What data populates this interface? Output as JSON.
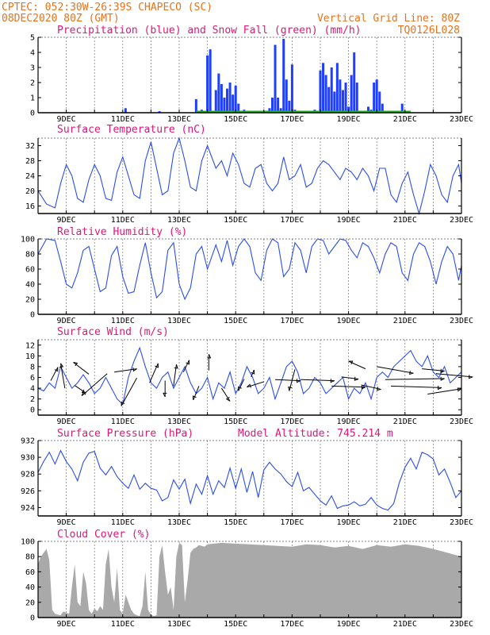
{
  "header": {
    "line1": "CPTEC:   052:30W-26:39S   CHAPECO (SC)",
    "line2": "08DEC2020 80Z (GMT)",
    "grid_note": "Vertical Grid Line: 80Z",
    "code": "TQ0126L028"
  },
  "date_ticks": [
    "9DEC",
    "11DEC",
    "13DEC",
    "15DEC",
    "17DEC",
    "19DEC",
    "21DEC",
    "23DEC"
  ],
  "chart_data": [
    {
      "id": "precip",
      "type": "bar",
      "title": "Precipitation (blue) and Snow Fall (green) (mm/h)",
      "ylim": [
        0,
        5
      ],
      "yticks": [
        0,
        1,
        2,
        3,
        4,
        5
      ],
      "xlim_days": [
        8.0,
        23.0
      ],
      "series": [
        {
          "color": "#1f3fff",
          "x": [
            11.1,
            12.3,
            13.6,
            13.8,
            14.0,
            14.1,
            14.3,
            14.4,
            14.5,
            14.6,
            14.7,
            14.8,
            14.9,
            15.0,
            15.1,
            15.3,
            15.5,
            16.0,
            16.2,
            16.3,
            16.4,
            16.5,
            16.6,
            16.7,
            16.8,
            16.9,
            17.0,
            17.1,
            17.5,
            17.8,
            18.0,
            18.1,
            18.2,
            18.3,
            18.4,
            18.5,
            18.6,
            18.7,
            18.8,
            18.9,
            19.0,
            19.1,
            19.2,
            19.3,
            19.7,
            19.8,
            19.9,
            20.0,
            20.1,
            20.2,
            20.9
          ],
          "values": [
            0.3,
            0.1,
            0.9,
            0.2,
            3.8,
            4.2,
            1.5,
            2.6,
            1.9,
            1.0,
            1.6,
            2.0,
            1.2,
            1.8,
            0.6,
            0.2,
            0.1,
            0.1,
            0.3,
            1.0,
            4.5,
            1.0,
            0.3,
            4.9,
            2.2,
            0.8,
            3.2,
            0.2,
            0.1,
            0.2,
            2.8,
            3.3,
            2.5,
            1.7,
            3.0,
            1.4,
            3.3,
            2.2,
            1.5,
            2.0,
            0.4,
            2.5,
            4.0,
            2.0,
            0.4,
            0.2,
            2.0,
            2.2,
            1.4,
            0.6,
            0.6
          ]
        }
      ]
    },
    {
      "id": "temp",
      "type": "line",
      "title": "Surface Temperature (nC)",
      "ylim": [
        14,
        34
      ],
      "yticks": [
        16,
        20,
        24,
        28,
        32
      ],
      "color": "#2b4ee8",
      "x": [
        8.0,
        8.3,
        8.6,
        8.8,
        9.0,
        9.2,
        9.4,
        9.6,
        9.8,
        10.0,
        10.2,
        10.4,
        10.6,
        10.8,
        11.0,
        11.2,
        11.4,
        11.6,
        11.8,
        12.0,
        12.2,
        12.4,
        12.6,
        12.8,
        13.0,
        13.2,
        13.4,
        13.6,
        13.8,
        14.0,
        14.3,
        14.5,
        14.7,
        14.9,
        15.1,
        15.3,
        15.5,
        15.7,
        15.9,
        16.1,
        16.3,
        16.5,
        16.7,
        16.9,
        17.1,
        17.3,
        17.5,
        17.7,
        17.9,
        18.1,
        18.3,
        18.5,
        18.7,
        18.9,
        19.1,
        19.3,
        19.5,
        19.7,
        19.9,
        20.1,
        20.3,
        20.5,
        20.7,
        20.9,
        21.1,
        21.3,
        21.5,
        21.7,
        21.9,
        22.1,
        22.3,
        22.5,
        22.7,
        22.9,
        23.0
      ],
      "values": [
        20,
        16.5,
        15.5,
        22,
        27,
        24,
        18,
        17,
        23,
        27,
        24,
        18,
        17.5,
        25,
        29,
        24,
        19,
        18,
        28,
        33,
        26,
        19,
        20,
        30,
        34,
        28,
        21,
        20,
        28,
        32,
        26,
        28,
        24,
        30,
        27,
        22,
        21,
        26,
        27,
        22,
        20,
        22,
        29,
        23,
        24,
        27,
        21,
        22,
        26,
        28,
        27,
        25,
        23,
        26,
        25,
        23,
        26,
        24,
        20,
        26,
        26,
        19,
        17,
        22,
        25,
        19,
        14,
        20,
        27,
        24,
        19,
        17,
        24,
        27,
        22
      ]
    },
    {
      "id": "rh",
      "type": "line",
      "title": "Relative Humidity (%)",
      "ylim": [
        0,
        100
      ],
      "yticks": [
        0,
        20,
        40,
        60,
        80,
        100
      ],
      "color": "#2b4ee8",
      "x": [
        8.0,
        8.3,
        8.6,
        8.8,
        9.0,
        9.2,
        9.4,
        9.6,
        9.8,
        10.0,
        10.2,
        10.4,
        10.6,
        10.8,
        11.0,
        11.2,
        11.4,
        11.6,
        11.8,
        12.0,
        12.2,
        12.4,
        12.6,
        12.8,
        13.0,
        13.2,
        13.4,
        13.6,
        13.8,
        14.0,
        14.3,
        14.5,
        14.7,
        14.9,
        15.1,
        15.3,
        15.5,
        15.7,
        15.9,
        16.1,
        16.3,
        16.5,
        16.7,
        16.9,
        17.1,
        17.3,
        17.5,
        17.7,
        17.9,
        18.1,
        18.3,
        18.5,
        18.7,
        18.9,
        19.1,
        19.3,
        19.5,
        19.7,
        19.9,
        20.1,
        20.3,
        20.5,
        20.7,
        20.9,
        21.1,
        21.3,
        21.5,
        21.7,
        21.9,
        22.1,
        22.3,
        22.5,
        22.7,
        22.9,
        23.0
      ],
      "values": [
        80,
        100,
        98,
        70,
        40,
        35,
        55,
        85,
        90,
        60,
        30,
        35,
        78,
        90,
        50,
        28,
        30,
        65,
        95,
        55,
        22,
        30,
        85,
        95,
        40,
        20,
        35,
        80,
        90,
        60,
        92,
        70,
        98,
        65,
        90,
        100,
        90,
        55,
        45,
        85,
        100,
        95,
        50,
        60,
        95,
        85,
        55,
        90,
        100,
        98,
        80,
        90,
        100,
        98,
        85,
        75,
        95,
        90,
        75,
        55,
        80,
        95,
        90,
        55,
        45,
        80,
        95,
        90,
        70,
        40,
        70,
        90,
        80,
        45,
        65
      ]
    },
    {
      "id": "wind",
      "type": "line",
      "title": "Surface Wind (m/s)",
      "ylim": [
        -1,
        13
      ],
      "yticks": [
        0,
        2,
        4,
        6,
        8,
        10,
        12
      ],
      "color": "#2b4ee8",
      "x": [
        8.0,
        8.2,
        8.4,
        8.6,
        8.8,
        9.0,
        9.2,
        9.4,
        9.6,
        9.8,
        10.0,
        10.2,
        10.4,
        10.6,
        10.8,
        11.0,
        11.2,
        11.4,
        11.6,
        11.8,
        12.0,
        12.2,
        12.4,
        12.6,
        12.8,
        13.0,
        13.2,
        13.4,
        13.6,
        13.8,
        14.0,
        14.2,
        14.4,
        14.6,
        14.8,
        15.0,
        15.2,
        15.4,
        15.6,
        15.8,
        16.0,
        16.2,
        16.4,
        16.6,
        16.8,
        17.0,
        17.2,
        17.4,
        17.6,
        17.8,
        18.0,
        18.2,
        18.4,
        18.6,
        18.8,
        19.0,
        19.2,
        19.4,
        19.6,
        19.8,
        20.0,
        20.2,
        20.4,
        20.6,
        20.8,
        21.0,
        21.2,
        21.4,
        21.6,
        21.8,
        22.0,
        22.2,
        22.4,
        22.6,
        22.8,
        23.0
      ],
      "values": [
        4,
        3.5,
        5,
        4,
        8,
        6,
        4,
        5,
        6.5,
        5,
        3,
        4,
        6,
        4,
        2,
        1,
        6,
        9,
        11.5,
        8,
        5,
        4,
        6,
        7,
        4,
        6,
        8,
        5,
        3,
        4,
        6,
        2,
        5,
        4,
        7,
        3,
        5,
        8,
        6,
        3,
        4,
        6,
        2,
        5,
        8,
        9,
        7,
        3,
        4,
        6,
        5,
        3,
        4,
        5,
        6,
        2,
        4,
        3,
        5,
        2,
        6,
        7,
        6,
        8,
        9,
        10,
        11,
        9,
        8,
        10,
        7,
        6,
        8,
        5,
        6,
        7
      ],
      "barbs": [
        {
          "x": 8.45,
          "y": 5.4,
          "dx": 0.25,
          "dy": 2.5
        },
        {
          "x": 8.95,
          "y": 4.0,
          "dx": -0.15,
          "dy": 4.6
        },
        {
          "x": 9.3,
          "y": 4.5,
          "dx": 0.4,
          "dy": -1.4
        },
        {
          "x": 9.8,
          "y": 6.6,
          "dx": -0.55,
          "dy": 2.2
        },
        {
          "x": 10.45,
          "y": 6.7,
          "dx": -0.9,
          "dy": -4.1
        },
        {
          "x": 10.7,
          "y": 7.0,
          "dx": 0.8,
          "dy": 0.6
        },
        {
          "x": 11.5,
          "y": 5.9,
          "dx": -0.55,
          "dy": -5.2
        },
        {
          "x": 11.95,
          "y": 5.0,
          "dx": 0.3,
          "dy": 3.6
        },
        {
          "x": 12.5,
          "y": 5.4,
          "dx": 0.0,
          "dy": -3.0
        },
        {
          "x": 12.8,
          "y": 4.4,
          "dx": 0.1,
          "dy": 4.0
        },
        {
          "x": 13.15,
          "y": 7.0,
          "dx": 0.2,
          "dy": 2.2
        },
        {
          "x": 13.7,
          "y": 4.4,
          "dx": -0.2,
          "dy": -2.6
        },
        {
          "x": 14.05,
          "y": 7.3,
          "dx": 0.0,
          "dy": 3.0
        },
        {
          "x": 14.5,
          "y": 4.0,
          "dx": 0.3,
          "dy": -2.4
        },
        {
          "x": 15.3,
          "y": 5.7,
          "dx": -0.2,
          "dy": -2.2
        },
        {
          "x": 15.55,
          "y": 6.1,
          "dx": 0.1,
          "dy": 1.3
        },
        {
          "x": 16.0,
          "y": 5.2,
          "dx": -0.6,
          "dy": -1.0
        },
        {
          "x": 16.4,
          "y": 5.6,
          "dx": 0.9,
          "dy": -0.2
        },
        {
          "x": 17.1,
          "y": 7.5,
          "dx": -0.2,
          "dy": -4.0
        },
        {
          "x": 17.3,
          "y": 5.6,
          "dx": 1.2,
          "dy": -0.2
        },
        {
          "x": 18.4,
          "y": 4.4,
          "dx": 1.2,
          "dy": -0.2
        },
        {
          "x": 18.75,
          "y": 6.1,
          "dx": 0.6,
          "dy": -0.4
        },
        {
          "x": 19.45,
          "y": 4.6,
          "dx": 0.7,
          "dy": -0.8
        },
        {
          "x": 19.6,
          "y": 7.6,
          "dx": -0.6,
          "dy": 1.4
        },
        {
          "x": 20.0,
          "y": 8.0,
          "dx": 1.3,
          "dy": -1.2
        },
        {
          "x": 20.3,
          "y": 5.6,
          "dx": 2.1,
          "dy": 0.2
        },
        {
          "x": 20.5,
          "y": 4.4,
          "dx": 1.8,
          "dy": -0.3
        },
        {
          "x": 21.6,
          "y": 7.6,
          "dx": 0.8,
          "dy": -0.4
        },
        {
          "x": 21.8,
          "y": 2.9,
          "dx": 1.2,
          "dy": 1.0
        },
        {
          "x": 22.1,
          "y": 6.7,
          "dx": 1.3,
          "dy": -0.6
        }
      ]
    },
    {
      "id": "pressure",
      "type": "line",
      "title": "Surface Pressure (hPa)",
      "subtitle": "Model Altitude: 745.214 m",
      "ylim": [
        923,
        932
      ],
      "yticks": [
        924,
        926,
        928,
        930,
        932
      ],
      "color": "#2b4ee8",
      "x": [
        8.0,
        8.2,
        8.4,
        8.6,
        8.8,
        9.0,
        9.2,
        9.4,
        9.6,
        9.8,
        10.0,
        10.2,
        10.4,
        10.6,
        10.8,
        11.0,
        11.2,
        11.4,
        11.6,
        11.8,
        12.0,
        12.2,
        12.4,
        12.6,
        12.8,
        13.0,
        13.2,
        13.4,
        13.6,
        13.8,
        14.0,
        14.2,
        14.4,
        14.6,
        14.8,
        15.0,
        15.2,
        15.4,
        15.6,
        15.8,
        16.0,
        16.2,
        16.4,
        16.6,
        16.8,
        17.0,
        17.2,
        17.4,
        17.6,
        17.8,
        18.0,
        18.2,
        18.4,
        18.6,
        18.8,
        19.0,
        19.2,
        19.4,
        19.6,
        19.8,
        20.0,
        20.2,
        20.4,
        20.6,
        20.8,
        21.0,
        21.2,
        21.4,
        21.6,
        21.8,
        22.0,
        22.2,
        22.4,
        22.6,
        22.8,
        23.0
      ],
      "values": [
        928.2,
        929.5,
        930.6,
        929.2,
        930.8,
        929.5,
        928.6,
        927.2,
        929.4,
        930.5,
        930.7,
        928.7,
        927.9,
        928.9,
        927.7,
        926.9,
        926.3,
        927.9,
        926.2,
        926.9,
        926.3,
        926.1,
        924.8,
        925.2,
        927.3,
        926.2,
        927.4,
        924.5,
        926.8,
        925.6,
        927.8,
        925.6,
        927.2,
        926.4,
        928.7,
        926.3,
        928.6,
        925.8,
        928.3,
        925.2,
        928.5,
        929.4,
        928.6,
        928.0,
        927.1,
        926.5,
        928.2,
        926.0,
        926.4,
        925.6,
        924.8,
        924.3,
        925.4,
        923.9,
        924.2,
        924.3,
        924.7,
        924.2,
        924.4,
        925.2,
        924.3,
        923.9,
        923.7,
        924.5,
        927.0,
        928.8,
        929.9,
        928.6,
        930.6,
        930.3,
        929.8,
        927.9,
        928.6,
        927.0,
        925.2,
        926.0
      ]
    },
    {
      "id": "cloud",
      "type": "area",
      "title": "Cloud Cover (%)",
      "ylim": [
        0,
        100
      ],
      "yticks": [
        0,
        20,
        40,
        60,
        80,
        100
      ],
      "color": "#a9a9a9",
      "x": [
        8.0,
        8.1,
        8.2,
        8.3,
        8.4,
        8.5,
        8.6,
        8.7,
        8.8,
        8.9,
        9.0,
        9.1,
        9.2,
        9.3,
        9.4,
        9.5,
        9.6,
        9.7,
        9.8,
        9.9,
        10.0,
        10.1,
        10.2,
        10.3,
        10.4,
        10.5,
        10.6,
        10.7,
        10.8,
        10.9,
        11.0,
        11.1,
        11.2,
        11.3,
        11.4,
        11.5,
        11.6,
        11.7,
        11.8,
        11.9,
        12.0,
        12.1,
        12.2,
        12.3,
        12.4,
        12.5,
        12.6,
        12.7,
        12.8,
        12.9,
        13.0,
        13.1,
        13.2,
        13.3,
        13.4,
        13.5,
        13.6,
        13.7,
        13.8,
        13.9,
        14.0,
        14.5,
        15.0,
        15.5,
        16.0,
        16.5,
        17.0,
        17.5,
        18.0,
        18.5,
        19.0,
        19.5,
        20.0,
        20.5,
        21.0,
        21.5,
        22.0,
        22.5,
        23.0
      ],
      "values": [
        70,
        80,
        85,
        90,
        75,
        10,
        5,
        4,
        3,
        8,
        6,
        5,
        40,
        70,
        20,
        15,
        60,
        45,
        10,
        5,
        12,
        8,
        15,
        10,
        70,
        90,
        40,
        20,
        65,
        10,
        5,
        30,
        20,
        10,
        5,
        3,
        2,
        15,
        60,
        10,
        4,
        2,
        3,
        80,
        95,
        60,
        30,
        40,
        10,
        80,
        98,
        95,
        20,
        50,
        85,
        90,
        92,
        95,
        94,
        93,
        96,
        98,
        97,
        96,
        95,
        94,
        93,
        96,
        95,
        92,
        94,
        90,
        95,
        93,
        96,
        94,
        90,
        85,
        80
      ]
    }
  ]
}
